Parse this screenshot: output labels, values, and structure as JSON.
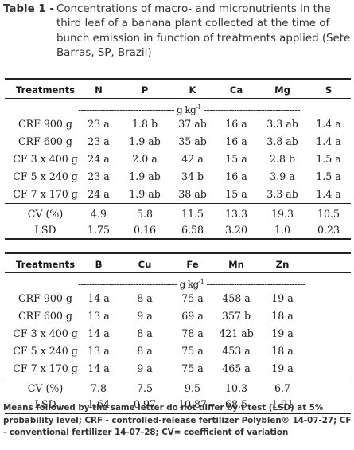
{
  "caption": {
    "label": "Table 1 -",
    "text": "Concentrations of macro- and micronutrients in the third leaf of a banana plant collected at the time of bunch emission in function of treatments applied (Sete Barras, SP, Brazil)"
  },
  "table1": {
    "treatments_header": "Treatments",
    "columns": [
      "N",
      "P",
      "K",
      "Ca",
      "Mg",
      "S"
    ],
    "unit_line": "----------------------------------- g kg-1 -----------------------------------",
    "rows": [
      {
        "treatment": "CRF 900 g",
        "values": [
          "23 a",
          "1.8 b",
          "37 ab",
          "16 a",
          "3.3 ab",
          "1.4 a"
        ]
      },
      {
        "treatment": "CRF 600 g",
        "values": [
          "23 a",
          "1.9 ab",
          "35 ab",
          "16 a",
          "3.8 ab",
          "1.4 a"
        ]
      },
      {
        "treatment": "CF 3 x 400 g",
        "values": [
          "24 a",
          "2.0 a",
          "42 a",
          "15 a",
          "2.8 b",
          "1.5 a"
        ]
      },
      {
        "treatment": "CF 5 x 240 g",
        "values": [
          "23 a",
          "1.9 ab",
          "34 b",
          "16 a",
          "3.9 a",
          "1.5 a"
        ]
      },
      {
        "treatment": "CF 7 x 170 g",
        "values": [
          "24 a",
          "1.9 ab",
          "38 ab",
          "15 a",
          "3.3 ab",
          "1.4 a"
        ]
      }
    ],
    "stats": [
      {
        "label": "CV (%)",
        "values": [
          "4.9",
          "5.8",
          "11.5",
          "13.3",
          "19.3",
          "10.5"
        ]
      },
      {
        "label": "LSD",
        "values": [
          "1.75",
          "0.16",
          "6.58",
          "3.20",
          "1.0",
          "0.23"
        ]
      }
    ]
  },
  "table2": {
    "treatments_header": "Treatments",
    "columns": [
      "B",
      "Cu",
      "Fe",
      "Mn",
      "Zn"
    ],
    "unit_line": "------------------------------------ g kg-1 ------------------------------------",
    "rows": [
      {
        "treatment": "CRF 900 g",
        "values": [
          "14 a",
          "8 a",
          "75 a",
          "458 a",
          "19 a"
        ]
      },
      {
        "treatment": "CRF 600 g",
        "values": [
          "13 a",
          "9 a",
          "69 a",
          "357 b",
          "18 a"
        ]
      },
      {
        "treatment": "CF 3 x 400 g",
        "values": [
          "14 a",
          "8 a",
          "78 a",
          "421 ab",
          "19 a"
        ]
      },
      {
        "treatment": "CF 5 x 240 g",
        "values": [
          "13 a",
          "8 a",
          "75 a",
          "453 a",
          "18 a"
        ]
      },
      {
        "treatment": "CF 7 x 170 g",
        "values": [
          "14 a",
          "9 a",
          "75 a",
          "465 a",
          "19 a"
        ]
      }
    ],
    "stats": [
      {
        "label": "CV (%)",
        "values": [
          "7.8",
          "7.5",
          "9.5",
          "10.3",
          "6.7"
        ]
      },
      {
        "label": "LSD",
        "values": [
          "1.64",
          "0.97",
          "10.87",
          "68.5",
          "1.91"
        ]
      }
    ]
  },
  "footnote": "Means followed by the same letter do not differ by t test (LSD) at 5% probability level; CRF - controlled-release fertilizer Polyblen® 14-07-27; CF - conventional fertilizer 14-07-28; CV= coefficient of  variation"
}
